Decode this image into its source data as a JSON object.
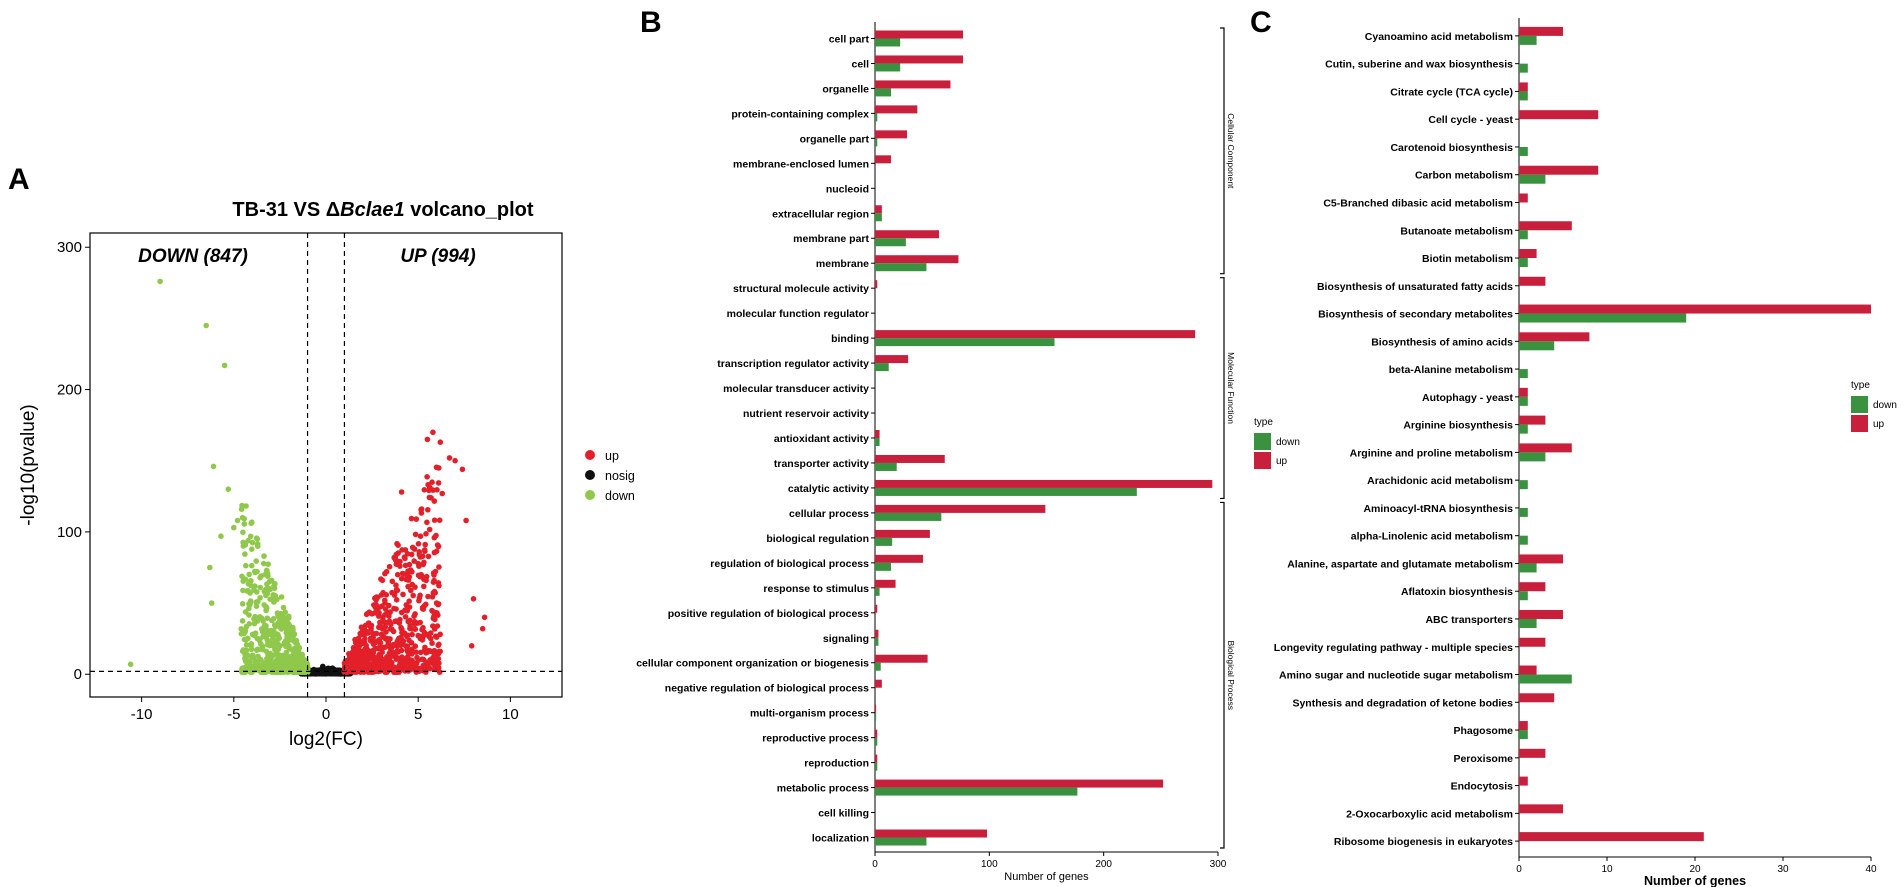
{
  "colors": {
    "up": "#e3202a",
    "nosig": "#111111",
    "down": "#8fc84b",
    "bar_up": "#c8203c",
    "bar_down": "#3a9140"
  },
  "chart_data": [
    {
      "panel": "A",
      "type": "scatter",
      "title_prefix": "TB-31  VS  Δ",
      "title_italic": "Bclae1",
      "title_suffix": " volcano_plot",
      "xlabel": "log2(FC)",
      "ylabel": "-log10(pvalue)",
      "xlim": [
        -12.8,
        12.8
      ],
      "ylim": [
        -16,
        310
      ],
      "xticks": [
        -10,
        -5,
        0,
        5,
        10
      ],
      "yticks": [
        0,
        100,
        200,
        300
      ],
      "thresholds": {
        "x": [
          -1,
          1
        ],
        "y": 2
      },
      "annotation_down": "DOWN (847)",
      "annotation_up": "UP (994)",
      "legend": [
        {
          "key": "up",
          "label": "up"
        },
        {
          "key": "nosig",
          "label": "nosig"
        },
        {
          "key": "down",
          "label": "down"
        }
      ],
      "highlight_points": {
        "down": [
          [
            -9,
            276
          ],
          [
            -6.5,
            245
          ],
          [
            -5.5,
            217
          ],
          [
            -6.1,
            146
          ],
          [
            -5.3,
            130
          ],
          [
            -10.6,
            7
          ],
          [
            -4.8,
            108
          ],
          [
            -5.0,
            103
          ],
          [
            -6.3,
            75
          ],
          [
            -6.2,
            50
          ],
          [
            -5.7,
            97
          ]
        ],
        "up": [
          [
            5.8,
            170
          ],
          [
            6.2,
            163
          ],
          [
            5.5,
            165
          ],
          [
            6.7,
            152
          ],
          [
            7.4,
            144
          ],
          [
            7.0,
            150
          ],
          [
            7.6,
            108
          ],
          [
            6.3,
            127
          ],
          [
            8.0,
            53
          ],
          [
            8.6,
            40
          ],
          [
            8.5,
            32
          ],
          [
            7.9,
            20
          ],
          [
            4.1,
            128
          ],
          [
            4.9,
            109
          ]
        ]
      }
    },
    {
      "panel": "B",
      "type": "bar",
      "orientation": "horizontal",
      "xlabel": "Number of genes",
      "xlim": [
        0,
        300
      ],
      "xticks": [
        0,
        100,
        200,
        300
      ],
      "legend_title": "type",
      "series": [
        {
          "name": "down",
          "key": "down"
        },
        {
          "name": "up",
          "key": "up"
        }
      ],
      "categories": [
        {
          "label": "cell part",
          "up": 77,
          "down": 22
        },
        {
          "label": "cell",
          "up": 77,
          "down": 22
        },
        {
          "label": "organelle",
          "up": 66,
          "down": 14
        },
        {
          "label": "protein-containing complex",
          "up": 37,
          "down": 2
        },
        {
          "label": "organelle part",
          "up": 28,
          "down": 2
        },
        {
          "label": "membrane-enclosed lumen",
          "up": 14,
          "down": 0
        },
        {
          "label": "nucleoid",
          "up": 0,
          "down": 0
        },
        {
          "label": "extracellular region",
          "up": 6,
          "down": 6
        },
        {
          "label": "membrane part",
          "up": 56,
          "down": 27
        },
        {
          "label": "membrane",
          "up": 73,
          "down": 45
        },
        {
          "label": "structural molecule activity",
          "up": 2,
          "down": 0
        },
        {
          "label": "molecular function regulator",
          "up": 0,
          "down": 0
        },
        {
          "label": "binding",
          "up": 280,
          "down": 157
        },
        {
          "label": "transcription regulator activity",
          "up": 29,
          "down": 12
        },
        {
          "label": "molecular transducer activity",
          "up": 0,
          "down": 0
        },
        {
          "label": "nutrient reservoir activity",
          "up": 0,
          "down": 0
        },
        {
          "label": "antioxidant activity",
          "up": 4,
          "down": 4
        },
        {
          "label": "transporter activity",
          "up": 61,
          "down": 19
        },
        {
          "label": "catalytic activity",
          "up": 295,
          "down": 229
        },
        {
          "label": "cellular process",
          "up": 149,
          "down": 58
        },
        {
          "label": "biological regulation",
          "up": 48,
          "down": 15
        },
        {
          "label": "regulation of biological process",
          "up": 42,
          "down": 14
        },
        {
          "label": "response to stimulus",
          "up": 18,
          "down": 4
        },
        {
          "label": "positive regulation of biological process",
          "up": 2,
          "down": 0
        },
        {
          "label": "signaling",
          "up": 3,
          "down": 3
        },
        {
          "label": "cellular component organization or biogenesis",
          "up": 46,
          "down": 5
        },
        {
          "label": "negative regulation of biological process",
          "up": 6,
          "down": 0
        },
        {
          "label": "multi-organism process",
          "up": 1,
          "down": 1
        },
        {
          "label": "reproductive process",
          "up": 2,
          "down": 2
        },
        {
          "label": "reproduction",
          "up": 2,
          "down": 2
        },
        {
          "label": "metabolic process",
          "up": 252,
          "down": 177
        },
        {
          "label": "cell killing",
          "up": 0,
          "down": 0
        },
        {
          "label": "localization",
          "up": 98,
          "down": 45
        }
      ],
      "groups": [
        {
          "label": "Cellular Component",
          "first": 0,
          "last": 9
        },
        {
          "label": "Molecular Function",
          "first": 10,
          "last": 18
        },
        {
          "label": "Biological Process",
          "first": 19,
          "last": 32
        }
      ]
    },
    {
      "panel": "C",
      "type": "bar",
      "orientation": "horizontal",
      "xlabel": "Number of genes",
      "xlim": [
        0,
        40
      ],
      "xticks": [
        0,
        10,
        20,
        30,
        40
      ],
      "legend_title": "type",
      "series": [
        {
          "name": "down",
          "key": "down"
        },
        {
          "name": "up",
          "key": "up"
        }
      ],
      "categories": [
        {
          "label": "Cyanoamino acid metabolism",
          "up": 5,
          "down": 2
        },
        {
          "label": "Cutin, suberine and wax biosynthesis",
          "up": 0,
          "down": 1
        },
        {
          "label": "Citrate cycle (TCA cycle)",
          "up": 1,
          "down": 1
        },
        {
          "label": "Cell cycle - yeast",
          "up": 9,
          "down": 0
        },
        {
          "label": "Carotenoid biosynthesis",
          "up": 0,
          "down": 1
        },
        {
          "label": "Carbon metabolism",
          "up": 9,
          "down": 3
        },
        {
          "label": "C5-Branched dibasic acid metabolism",
          "up": 1,
          "down": 0
        },
        {
          "label": "Butanoate metabolism",
          "up": 6,
          "down": 1
        },
        {
          "label": "Biotin metabolism",
          "up": 2,
          "down": 1
        },
        {
          "label": "Biosynthesis of unsaturated fatty acids",
          "up": 3,
          "down": 0
        },
        {
          "label": "Biosynthesis of secondary metabolites",
          "up": 40,
          "down": 19
        },
        {
          "label": "Biosynthesis of amino acids",
          "up": 8,
          "down": 4
        },
        {
          "label": "beta-Alanine metabolism",
          "up": 0,
          "down": 1
        },
        {
          "label": "Autophagy - yeast",
          "up": 1,
          "down": 1
        },
        {
          "label": "Arginine biosynthesis",
          "up": 3,
          "down": 1
        },
        {
          "label": "Arginine and proline metabolism",
          "up": 6,
          "down": 3
        },
        {
          "label": "Arachidonic acid metabolism",
          "up": 0,
          "down": 1
        },
        {
          "label": "Aminoacyl-tRNA biosynthesis",
          "up": 0,
          "down": 1
        },
        {
          "label": "alpha-Linolenic acid metabolism",
          "up": 0,
          "down": 1
        },
        {
          "label": "Alanine, aspartate and glutamate metabolism",
          "up": 5,
          "down": 2
        },
        {
          "label": "Aflatoxin biosynthesis",
          "up": 3,
          "down": 1
        },
        {
          "label": "ABC transporters",
          "up": 5,
          "down": 2
        },
        {
          "label": "Longevity regulating pathway - multiple species",
          "up": 3,
          "down": 0
        },
        {
          "label": "Amino sugar and nucleotide sugar metabolism",
          "up": 2,
          "down": 6
        },
        {
          "label": "Synthesis and degradation of ketone bodies",
          "up": 4,
          "down": 0
        },
        {
          "label": "Phagosome",
          "up": 1,
          "down": 1
        },
        {
          "label": "Peroxisome",
          "up": 3,
          "down": 0
        },
        {
          "label": "Endocytosis",
          "up": 1,
          "down": 0
        },
        {
          "label": "2-Oxocarboxylic acid metabolism",
          "up": 5,
          "down": 0
        },
        {
          "label": "Ribosome biogenesis in eukaryotes",
          "up": 21,
          "down": 0
        }
      ]
    }
  ]
}
